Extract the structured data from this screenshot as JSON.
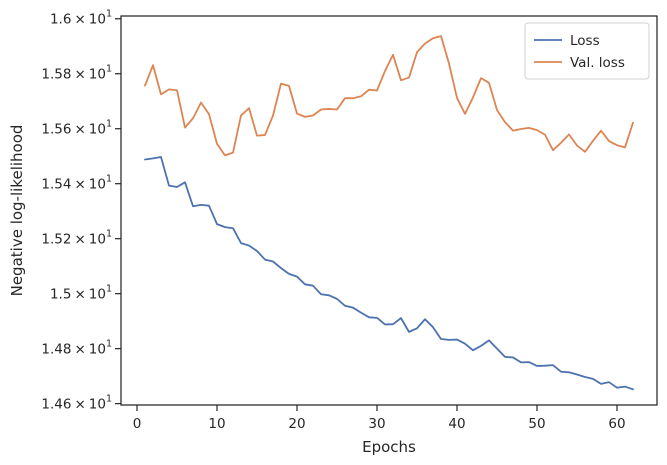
{
  "chart_data": {
    "type": "line",
    "title": "",
    "xlabel": "Epochs",
    "ylabel": "Negative log-likelihood",
    "xlim": [
      -2,
      65
    ],
    "ylim": [
      14.595,
      16.01
    ],
    "grid": false,
    "legend_position": "top-right",
    "x_ticks": [
      {
        "value": 0,
        "label": "0"
      },
      {
        "value": 10,
        "label": "10"
      },
      {
        "value": 20,
        "label": "20"
      },
      {
        "value": 30,
        "label": "30"
      },
      {
        "value": 40,
        "label": "40"
      },
      {
        "value": 50,
        "label": "50"
      },
      {
        "value": 60,
        "label": "60"
      }
    ],
    "y_ticks": [
      {
        "value": 14.6,
        "mantissa": "1.46",
        "times": "×",
        "base": "10",
        "exp": "1"
      },
      {
        "value": 14.8,
        "mantissa": "1.48",
        "times": "×",
        "base": "10",
        "exp": "1"
      },
      {
        "value": 15.0,
        "mantissa": "1.5",
        "times": "×",
        "base": "10",
        "exp": "1"
      },
      {
        "value": 15.2,
        "mantissa": "1.52",
        "times": "×",
        "base": "10",
        "exp": "1"
      },
      {
        "value": 15.4,
        "mantissa": "1.54",
        "times": "×",
        "base": "10",
        "exp": "1"
      },
      {
        "value": 15.6,
        "mantissa": "1.56",
        "times": "×",
        "base": "10",
        "exp": "1"
      },
      {
        "value": 15.8,
        "mantissa": "1.58",
        "times": "×",
        "base": "10",
        "exp": "1"
      },
      {
        "value": 16.0,
        "mantissa": "1.6",
        "times": "×",
        "base": "10",
        "exp": "1"
      }
    ],
    "x": [
      1,
      2,
      3,
      4,
      5,
      6,
      7,
      8,
      9,
      10,
      11,
      12,
      13,
      14,
      15,
      16,
      17,
      18,
      19,
      20,
      21,
      22,
      23,
      24,
      25,
      26,
      27,
      28,
      29,
      30,
      31,
      32,
      33,
      34,
      35,
      36,
      37,
      38,
      39,
      40,
      41,
      42,
      43,
      44,
      45,
      46,
      47,
      48,
      49,
      50,
      51,
      52,
      53,
      54,
      55,
      56,
      57,
      58,
      59,
      60,
      61,
      62
    ],
    "series": [
      {
        "name": "Loss",
        "color": "#4c72b0",
        "values": [
          15.488,
          15.492,
          15.497,
          15.393,
          15.388,
          15.405,
          15.318,
          15.323,
          15.32,
          15.253,
          15.242,
          15.238,
          15.184,
          15.175,
          15.155,
          15.124,
          15.117,
          15.093,
          15.072,
          15.062,
          15.034,
          15.029,
          14.998,
          14.994,
          14.981,
          14.956,
          14.949,
          14.931,
          14.914,
          14.912,
          14.888,
          14.889,
          14.911,
          14.861,
          14.874,
          14.907,
          14.878,
          14.835,
          14.832,
          14.833,
          14.818,
          14.794,
          14.81,
          14.83,
          14.8,
          14.77,
          14.768,
          14.75,
          14.751,
          14.737,
          14.738,
          14.74,
          14.716,
          14.714,
          14.706,
          14.697,
          14.69,
          14.672,
          14.678,
          14.658,
          14.662,
          14.652
        ]
      },
      {
        "name": "Val. loss",
        "color": "#dd8452",
        "values": [
          15.757,
          15.831,
          15.725,
          15.743,
          15.74,
          15.604,
          15.638,
          15.695,
          15.653,
          15.545,
          15.503,
          15.513,
          15.648,
          15.675,
          15.575,
          15.577,
          15.648,
          15.764,
          15.756,
          15.655,
          15.643,
          15.648,
          15.67,
          15.672,
          15.67,
          15.711,
          15.711,
          15.718,
          15.742,
          15.739,
          15.81,
          15.869,
          15.776,
          15.786,
          15.878,
          15.91,
          15.929,
          15.937,
          15.837,
          15.712,
          15.654,
          15.714,
          15.784,
          15.767,
          15.668,
          15.624,
          15.593,
          15.599,
          15.603,
          15.595,
          15.578,
          15.522,
          15.549,
          15.579,
          15.539,
          15.516,
          15.556,
          15.593,
          15.555,
          15.54,
          15.532,
          15.622
        ]
      }
    ]
  }
}
